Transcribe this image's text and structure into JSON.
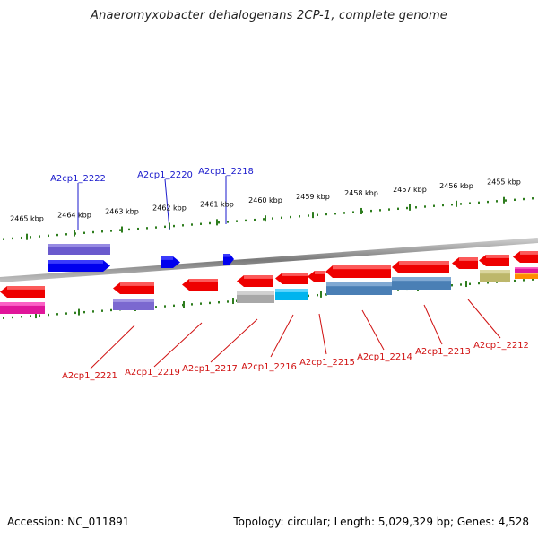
{
  "title": "Anaeromyxobacter dehalogenans 2CP-1, complete genome",
  "footer": {
    "accession": "Accession: NC_011891",
    "topology": "Topology: circular; Length: 5,029,329 bp; Genes: 4,528"
  },
  "colors": {
    "backbone": "#8a8a8a",
    "tick": "#2e7d1e",
    "forward_label": "#1a1acc",
    "reverse_label": "#d01010",
    "kbp_label": "#000000"
  },
  "kbp_labels": [
    "2465 kbp",
    "2464 kbp",
    "2463 kbp",
    "2462 kbp",
    "2461 kbp",
    "2460 kbp",
    "2459 kbp",
    "2458 kbp",
    "2457 kbp",
    "2456 kbp",
    "2455 kbp"
  ],
  "forward_gene_labels": [
    "A2cp1_2222",
    "A2cp1_2220",
    "A2cp1_2218"
  ],
  "reverse_gene_labels": [
    "A2cp1_2221",
    "A2cp1_2219",
    "A2cp1_2217",
    "A2cp1_2216",
    "A2cp1_2215",
    "A2cp1_2214",
    "A2cp1_2213",
    "A2cp1_2212"
  ]
}
